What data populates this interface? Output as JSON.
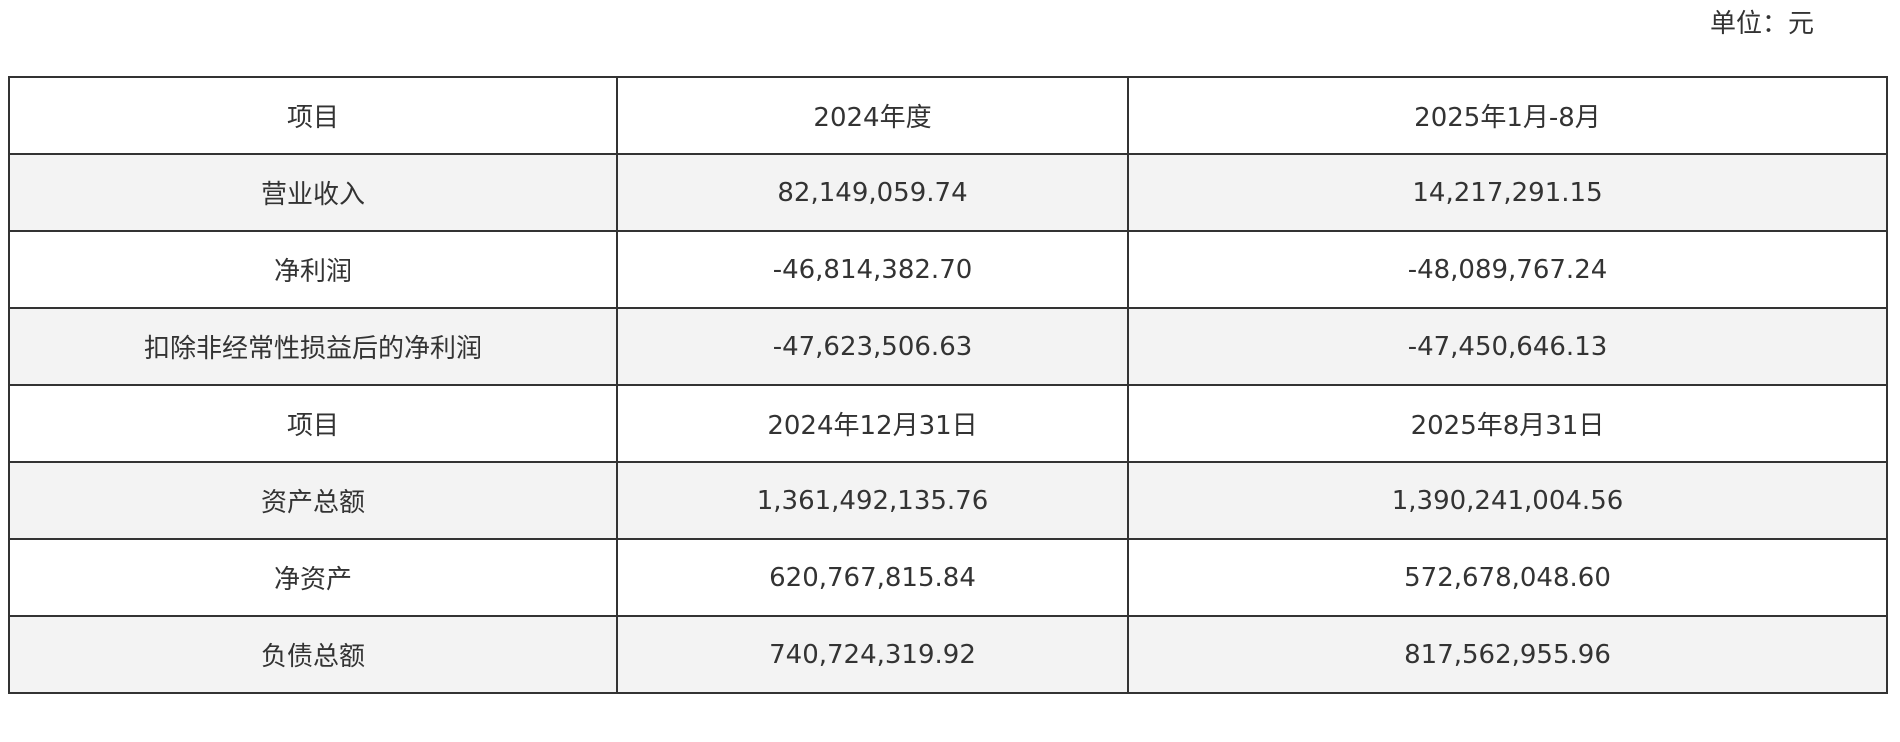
{
  "unit_label": "单位：元",
  "rows": [
    {
      "item": "项目",
      "col1": "2024年度",
      "col2": "2025年1月-8月",
      "shaded": false
    },
    {
      "item": "营业收入",
      "col1": "82,149,059.74",
      "col2": "14,217,291.15",
      "shaded": true
    },
    {
      "item": "净利润",
      "col1": "-46,814,382.70",
      "col2": "-48,089,767.24",
      "shaded": false
    },
    {
      "item": "扣除非经常性损益后的净利润",
      "col1": "-47,623,506.63",
      "col2": "-47,450,646.13",
      "shaded": true
    },
    {
      "item": "项目",
      "col1": "2024年12月31日",
      "col2": "2025年8月31日",
      "shaded": false
    },
    {
      "item": "资产总额",
      "col1": "1,361,492,135.76",
      "col2": "1,390,241,004.56",
      "shaded": true
    },
    {
      "item": "净资产",
      "col1": "620,767,815.84",
      "col2": "572,678,048.60",
      "shaded": false
    },
    {
      "item": "负债总额",
      "col1": "740,724,319.92",
      "col2": "817,562,955.96",
      "shaded": true
    }
  ]
}
